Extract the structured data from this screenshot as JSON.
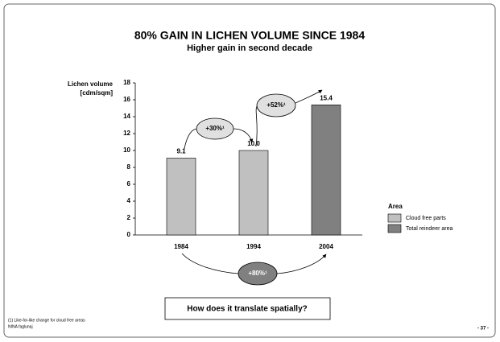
{
  "chart_data": {
    "type": "bar",
    "title": "80% GAIN IN LICHEN VOLUME SINCE 1984",
    "subtitle": "Higher gain in second decade",
    "y_label": [
      "Lichen volume",
      "[cdm/sqm]"
    ],
    "categories": [
      "1984",
      "1994",
      "2004"
    ],
    "series": [
      {
        "name": "Cloud free parts",
        "color": "#c0c0c0",
        "values": [
          9.1,
          10.0,
          null
        ],
        "value_labels": [
          "9.1",
          "10.0",
          null
        ]
      },
      {
        "name": "Total reindeer area",
        "color": "#808080",
        "values": [
          null,
          null,
          15.4
        ],
        "value_labels": [
          null,
          null,
          "15.4"
        ]
      }
    ],
    "ylim": [
      0,
      18
    ],
    "yticks": [
      0,
      2,
      4,
      6,
      8,
      10,
      12,
      14,
      16,
      18
    ],
    "legend_title": "Area",
    "legend_position": "right",
    "annotations": [
      "+30%¹",
      "+52%¹",
      "+80%¹"
    ],
    "callout": "How does it translate spatially?",
    "footnotes": [
      "(1) Like-for-like change for cloud free areas",
      "NINA faglunaj"
    ],
    "page_number": "- 37 -"
  }
}
